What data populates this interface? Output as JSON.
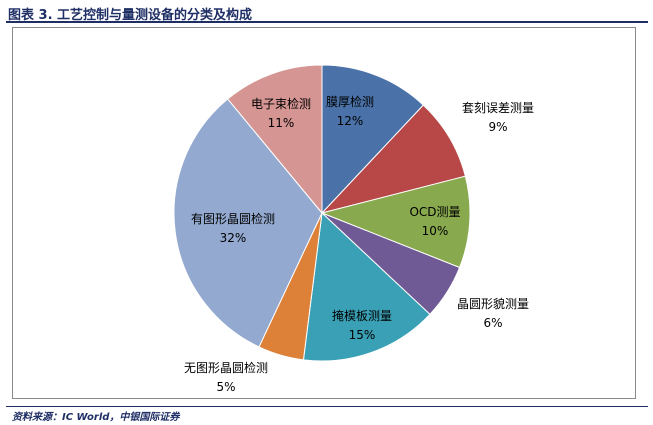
{
  "figure": {
    "title": "图表 3. 工艺控制与量测设备的分类及构成",
    "source": "资料来源：IC World，中银国际证券"
  },
  "chart_data": {
    "type": "pie",
    "title": "",
    "start": "12 o'clock",
    "direction": "clockwise",
    "legend": "none",
    "slices": [
      {
        "label": "膜厚检测",
        "value": 12,
        "pct_label": "12%",
        "color": "#4a72a8"
      },
      {
        "label": "套刻误差测量",
        "value": 9,
        "pct_label": "9%",
        "color": "#b84747"
      },
      {
        "label": "OCD测量",
        "value": 10,
        "pct_label": "10%",
        "color": "#88a94d"
      },
      {
        "label": "晶圆形貌测量",
        "value": 6,
        "pct_label": "6%",
        "color": "#6f5a96"
      },
      {
        "label": "掩模板测量",
        "value": 15,
        "pct_label": "15%",
        "color": "#3aa0b5"
      },
      {
        "label": "无图形晶圆检测",
        "value": 5,
        "pct_label": "5%",
        "color": "#dd8138"
      },
      {
        "label": "有图形晶圆检测",
        "value": 32,
        "pct_label": "32%",
        "color": "#93a9cf"
      },
      {
        "label": "电子束检测",
        "value": 11,
        "pct_label": "11%",
        "color": "#d49593"
      }
    ]
  }
}
